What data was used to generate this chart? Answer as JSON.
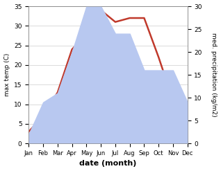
{
  "months": [
    "Jan",
    "Feb",
    "Mar",
    "Apr",
    "May",
    "Jun",
    "Jul",
    "Aug",
    "Sep",
    "Oct",
    "Nov",
    "Dec"
  ],
  "temp_max": [
    3,
    7,
    13,
    24,
    28,
    34,
    31,
    32,
    32,
    22,
    11,
    10
  ],
  "precip": [
    2,
    9,
    11,
    20,
    30,
    30,
    24,
    24,
    16,
    16,
    16,
    9
  ],
  "temp_color": "#c0392b",
  "precip_fill_color": "#b8c8f0",
  "ylabel_left": "max temp (C)",
  "ylabel_right": "med. precipitation (kg/m2)",
  "xlabel": "date (month)",
  "ylim_left": [
    0,
    35
  ],
  "ylim_right": [
    0,
    30
  ],
  "yticks_left": [
    0,
    5,
    10,
    15,
    20,
    25,
    30,
    35
  ],
  "yticks_right": [
    0,
    5,
    10,
    15,
    20,
    25,
    30
  ],
  "bg_color": "#ffffff",
  "fig_width": 3.18,
  "fig_height": 2.47,
  "dpi": 100
}
